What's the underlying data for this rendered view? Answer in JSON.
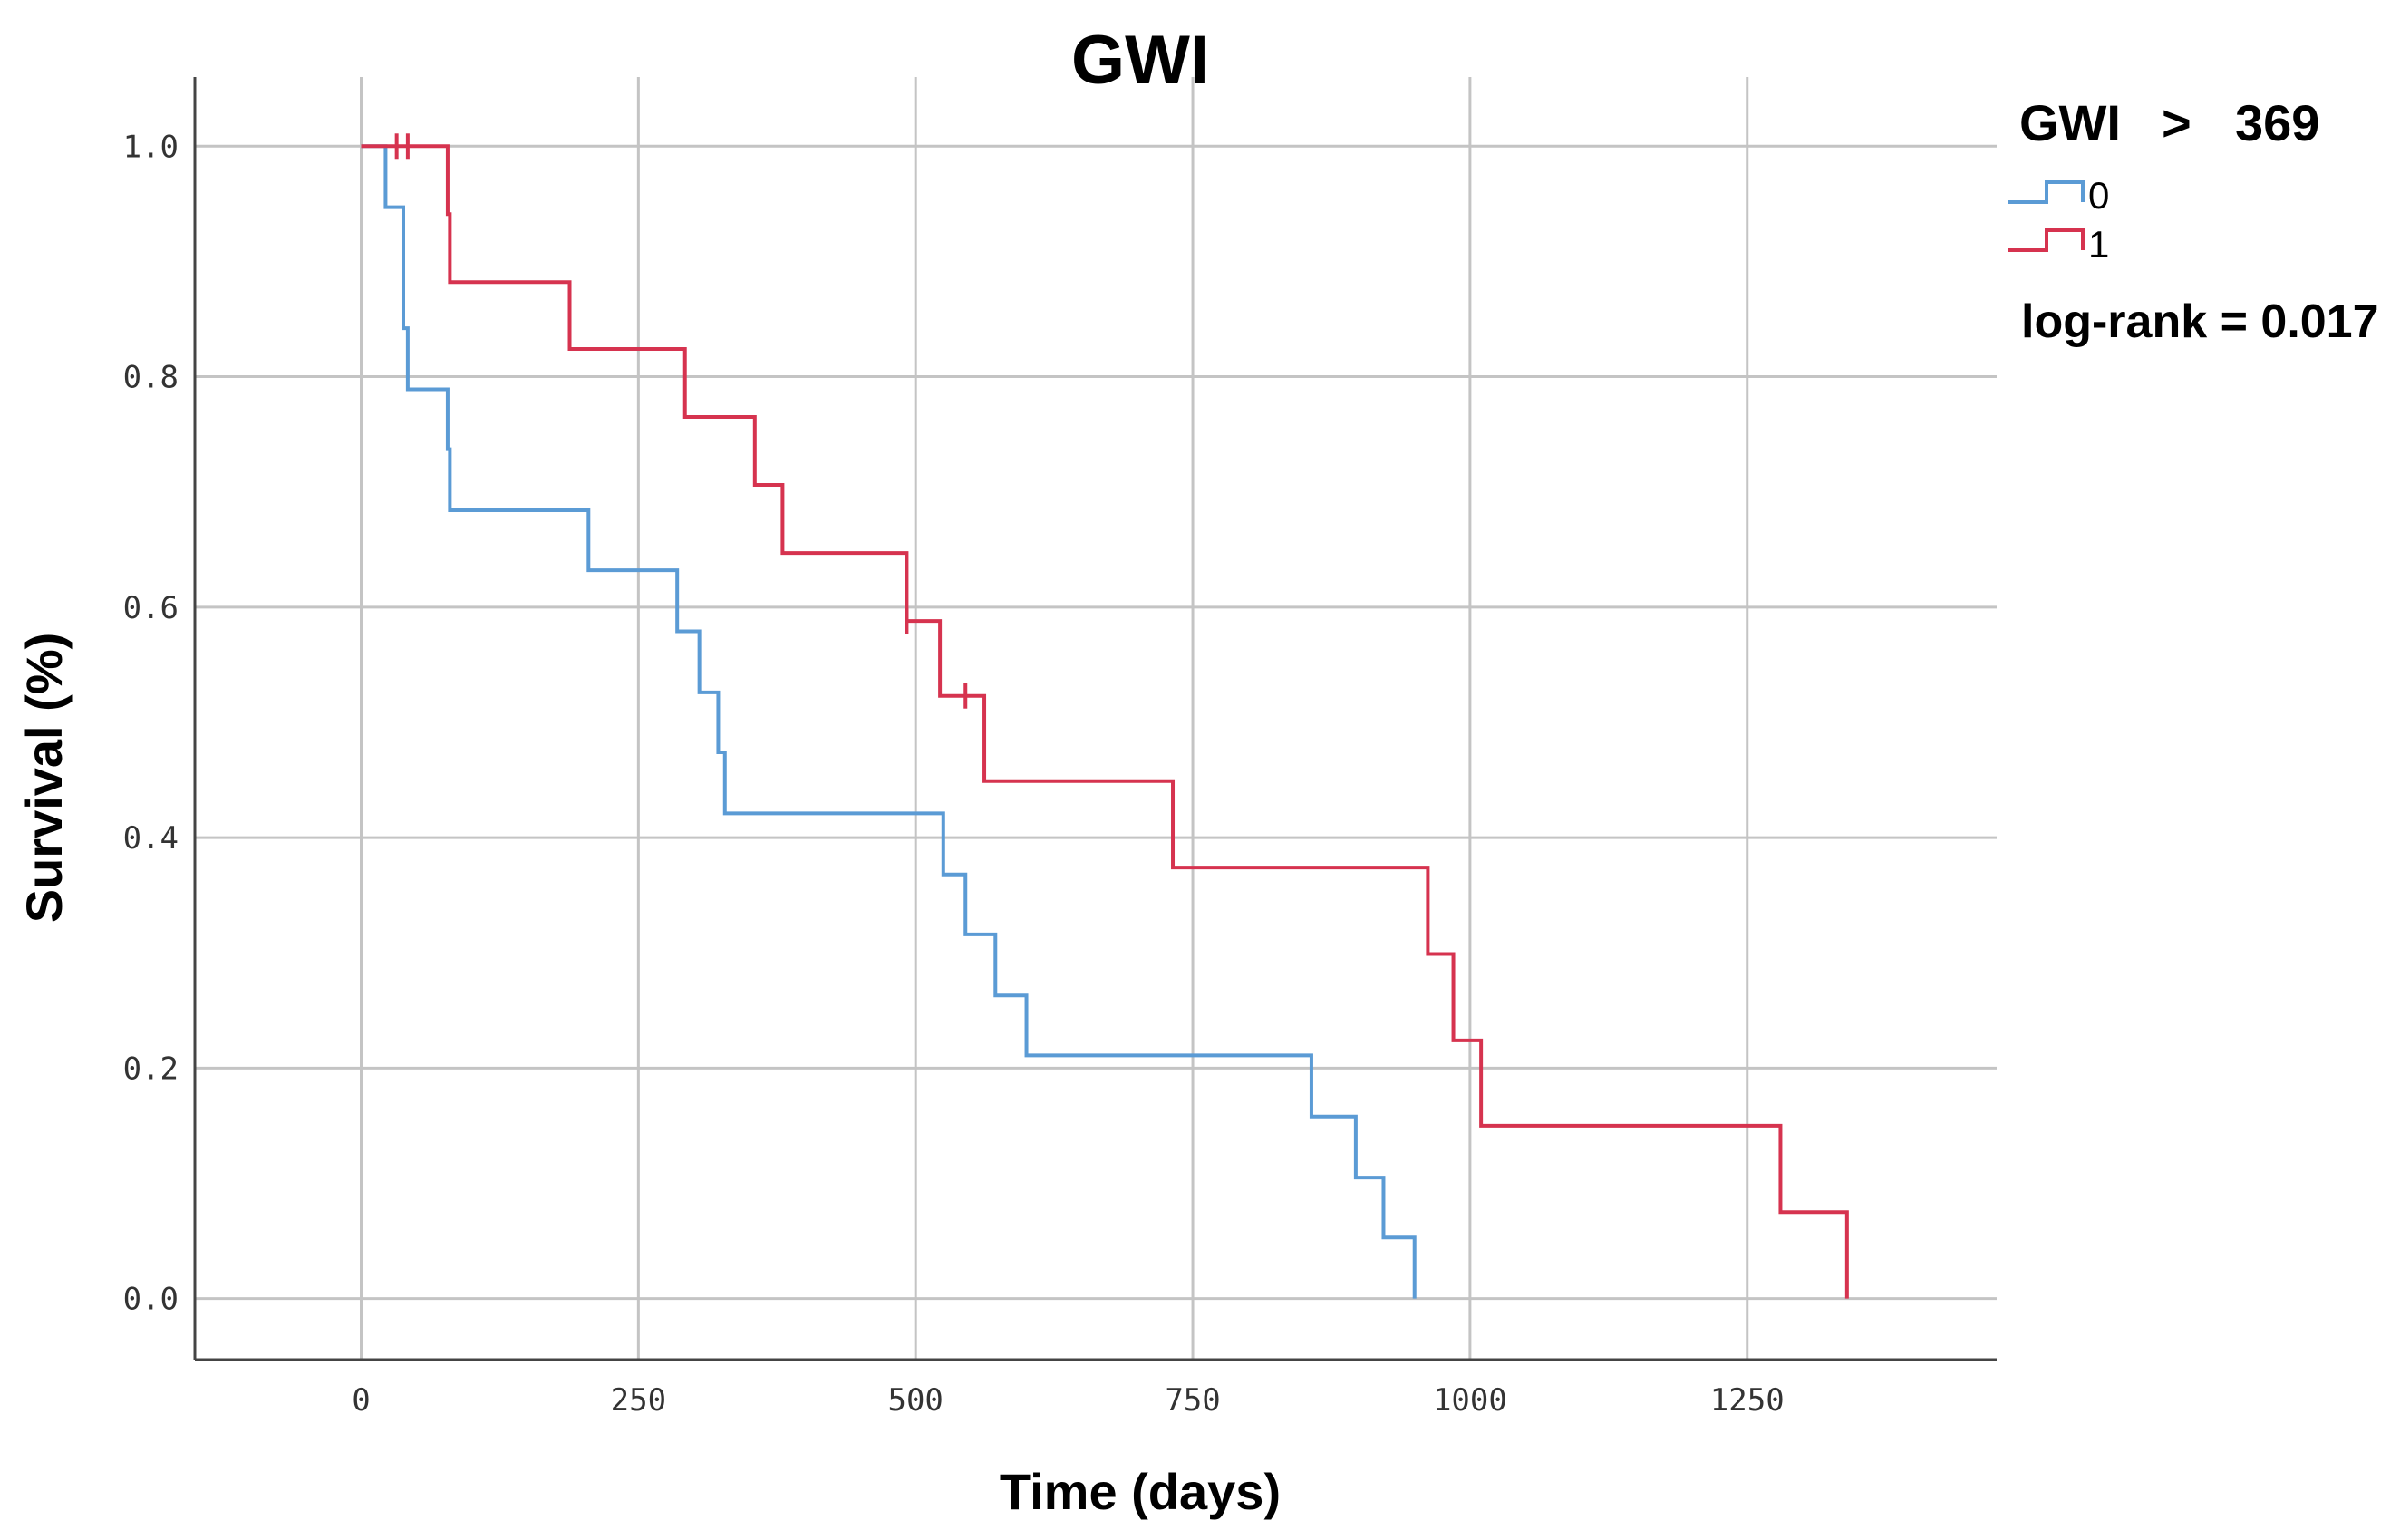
{
  "chart_data": {
    "type": "line",
    "subtype": "kaplan-meier-step",
    "title": "GWI",
    "xlabel": "Time (days)",
    "ylabel": "Survival (%)",
    "xlim": [
      -150,
      1475
    ],
    "ylim": [
      -0.053,
      1.06
    ],
    "xticks": [
      0,
      250,
      500,
      750,
      1000,
      1250
    ],
    "xtick_labels": [
      "0",
      "250",
      "500",
      "750",
      "1000",
      "1250"
    ],
    "yticks": [
      0.0,
      0.2,
      0.4,
      0.6,
      0.8,
      1.0
    ],
    "ytick_labels": [
      "0.0",
      "0.2",
      "0.4",
      "0.6",
      "0.8",
      "1.0"
    ],
    "grid": true,
    "legend": {
      "title_parts": [
        "GWI",
        ">",
        "369"
      ],
      "placement": "right",
      "entries": [
        "0",
        "1"
      ]
    },
    "annotation": "log-rank = 0.017",
    "series": [
      {
        "name": "0",
        "color": "#5b9bd5",
        "steps": [
          {
            "t": 0,
            "s": 1.0
          },
          {
            "t": 22,
            "s": 0.947
          },
          {
            "t": 38,
            "s": 0.842
          },
          {
            "t": 42,
            "s": 0.789
          },
          {
            "t": 78,
            "s": 0.737
          },
          {
            "t": 80,
            "s": 0.684
          },
          {
            "t": 205,
            "s": 0.632
          },
          {
            "t": 285,
            "s": 0.579
          },
          {
            "t": 305,
            "s": 0.526
          },
          {
            "t": 322,
            "s": 0.474
          },
          {
            "t": 328,
            "s": 0.421
          },
          {
            "t": 525,
            "s": 0.368
          },
          {
            "t": 545,
            "s": 0.316
          },
          {
            "t": 572,
            "s": 0.263
          },
          {
            "t": 600,
            "s": 0.211
          },
          {
            "t": 857,
            "s": 0.158
          },
          {
            "t": 897,
            "s": 0.105
          },
          {
            "t": 922,
            "s": 0.053
          },
          {
            "t": 950,
            "s": 0.0
          }
        ],
        "end_time": 950,
        "censored": []
      },
      {
        "name": "1",
        "color": "#d6334f",
        "steps": [
          {
            "t": 0,
            "s": 1.0
          },
          {
            "t": 78,
            "s": 0.941
          },
          {
            "t": 80,
            "s": 0.882
          },
          {
            "t": 188,
            "s": 0.824
          },
          {
            "t": 292,
            "s": 0.765
          },
          {
            "t": 355,
            "s": 0.706
          },
          {
            "t": 380,
            "s": 0.647
          },
          {
            "t": 492,
            "s": 0.588
          },
          {
            "t": 522,
            "s": 0.523
          },
          {
            "t": 562,
            "s": 0.449
          },
          {
            "t": 732,
            "s": 0.374
          },
          {
            "t": 962,
            "s": 0.299
          },
          {
            "t": 985,
            "s": 0.224
          },
          {
            "t": 1010,
            "s": 0.15
          },
          {
            "t": 1280,
            "s": 0.075
          },
          {
            "t": 1340,
            "s": 0.0
          }
        ],
        "end_time": 1340,
        "censored": [
          {
            "t": 32,
            "s": 1.0
          },
          {
            "t": 42,
            "s": 1.0
          },
          {
            "t": 492,
            "s": 0.588
          },
          {
            "t": 545,
            "s": 0.523
          }
        ]
      }
    ]
  }
}
